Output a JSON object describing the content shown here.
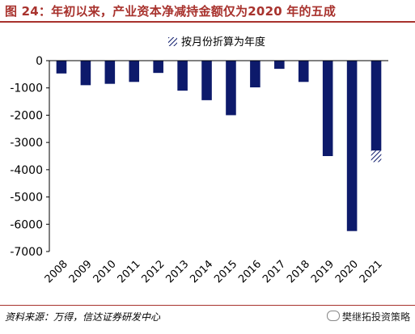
{
  "title": "图 24：年初以来，产业资本净减持金额仅为2020 年的五成",
  "source": "资料来源：万得，信达证券研发中心",
  "watermark": "樊继拓投资策略",
  "colors": {
    "bar": "#0d1a6b",
    "title": "#a8322d",
    "hatch": "#0d1a6b"
  },
  "chart_data": {
    "type": "bar",
    "categories": [
      "2008",
      "2009",
      "2010",
      "2011",
      "2012",
      "2013",
      "2014",
      "2015",
      "2016",
      "2017",
      "2018",
      "2019",
      "2020",
      "2021"
    ],
    "values": [
      -470,
      -900,
      -850,
      -780,
      -450,
      -1100,
      -1450,
      -2000,
      -980,
      -300,
      -780,
      -3500,
      -6250,
      -3300
    ],
    "annualized_extension": {
      "category": "2021",
      "from": -3300,
      "to": -3720
    },
    "legend": {
      "label": "按月份折算为年度",
      "position": "top-right"
    },
    "yticks": [
      0,
      -1000,
      -2000,
      -3000,
      -4000,
      -5000,
      -6000,
      -7000
    ],
    "ylim": [
      -7000,
      0
    ],
    "grid": false
  }
}
